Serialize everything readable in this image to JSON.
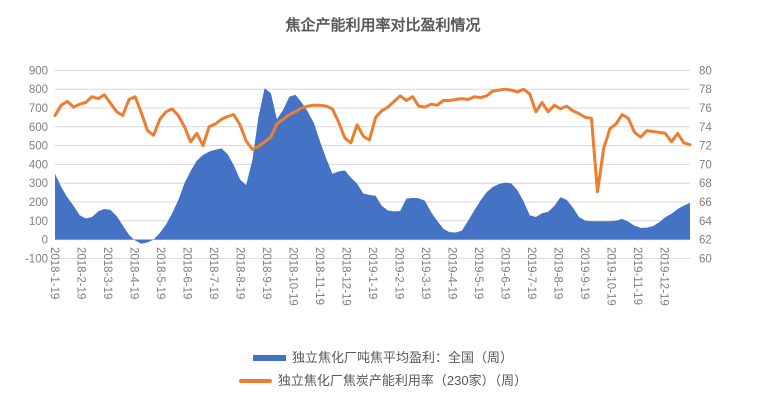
{
  "colors": {
    "area": "#4472C4",
    "line": "#ED7D31",
    "grid": "#D9D9D9",
    "axis_text": "#808080",
    "title_text": "#595959",
    "legend_text": "#595959",
    "background": "#FFFFFF"
  },
  "chart_data": {
    "type": "combo",
    "title": "焦企产能利用率对比盈利情况",
    "grid": true,
    "legend_position": "bottom",
    "x_label_rotation": 90,
    "x_labels": [
      "2018-1-19",
      "2018-2-19",
      "2018-3-19",
      "2018-4-19",
      "2018-5-19",
      "2018-6-19",
      "2018-7-19",
      "2018-8-19",
      "2018-9-19",
      "2018-10-19",
      "2018-11-19",
      "2018-12-19",
      "2019-1-19",
      "2019-2-19",
      "2019-3-19",
      "2019-4-19",
      "2019-5-19",
      "2019-6-19",
      "2019-7-19",
      "2019-8-19",
      "2019-9-19",
      "2019-10-19",
      "2019-11-19",
      "2019-12-19"
    ],
    "left_axis": {
      "min": -100,
      "max": 900,
      "step": 100,
      "ticks": [
        900,
        800,
        700,
        600,
        500,
        400,
        300,
        200,
        100,
        0,
        -100
      ]
    },
    "right_axis": {
      "min": 60,
      "max": 80,
      "step": 2,
      "ticks": [
        80,
        78,
        76,
        74,
        72,
        70,
        68,
        66,
        64,
        62,
        60
      ]
    },
    "series": [
      {
        "name": "独立焦化厂吨焦平均盈利：全国（周）",
        "type": "area",
        "axis": "left",
        "color": "#4472C4",
        "values": [
          350,
          280,
          225,
          180,
          130,
          112,
          120,
          150,
          163,
          158,
          125,
          75,
          25,
          -5,
          -22,
          -15,
          0,
          35,
          80,
          140,
          210,
          300,
          365,
          420,
          450,
          468,
          478,
          485,
          455,
          395,
          320,
          290,
          420,
          650,
          805,
          780,
          640,
          690,
          760,
          770,
          730,
          680,
          620,
          520,
          430,
          350,
          362,
          368,
          330,
          298,
          245,
          238,
          233,
          180,
          155,
          150,
          152,
          218,
          222,
          220,
          207,
          145,
          100,
          57,
          40,
          38,
          48,
          100,
          155,
          207,
          252,
          280,
          296,
          303,
          300,
          262,
          205,
          130,
          120,
          140,
          148,
          180,
          225,
          212,
          170,
          120,
          101,
          98,
          98,
          98,
          98,
          100,
          110,
          96,
          74,
          62,
          64,
          72,
          92,
          119,
          137,
          163,
          181,
          195
        ]
      },
      {
        "name": "独立焦化厂焦炭产能利用率（230家）（周）",
        "type": "line",
        "axis": "right",
        "color": "#ED7D31",
        "values": [
          75.2,
          76.3,
          76.7,
          76.1,
          76.4,
          76.6,
          77.2,
          77.0,
          77.4,
          76.5,
          75.6,
          75.2,
          76.9,
          77.2,
          75.5,
          73.6,
          73.1,
          74.8,
          75.6,
          75.9,
          75.2,
          74.0,
          72.4,
          73.3,
          72.0,
          74.0,
          74.3,
          74.8,
          75.1,
          75.3,
          74.2,
          72.5,
          71.6,
          71.9,
          72.4,
          72.9,
          74.3,
          74.8,
          75.3,
          75.6,
          76.0,
          76.2,
          76.3,
          76.3,
          76.2,
          75.9,
          74.5,
          72.8,
          72.3,
          74.2,
          73.0,
          72.6,
          75.0,
          75.7,
          76.1,
          76.7,
          77.3,
          76.8,
          77.2,
          76.2,
          76.1,
          76.4,
          76.3,
          76.8,
          76.8,
          76.9,
          77.0,
          76.9,
          77.2,
          77.1,
          77.3,
          77.8,
          77.9,
          78.0,
          77.9,
          77.7,
          78.0,
          77.5,
          75.6,
          76.6,
          75.6,
          76.3,
          75.9,
          76.2,
          75.7,
          75.4,
          75.0,
          74.9,
          67.1,
          71.7,
          73.8,
          74.3,
          75.3,
          74.9,
          73.4,
          72.9,
          73.6,
          73.5,
          73.4,
          73.3,
          72.4,
          73.3,
          72.3,
          72.1
        ]
      }
    ]
  }
}
